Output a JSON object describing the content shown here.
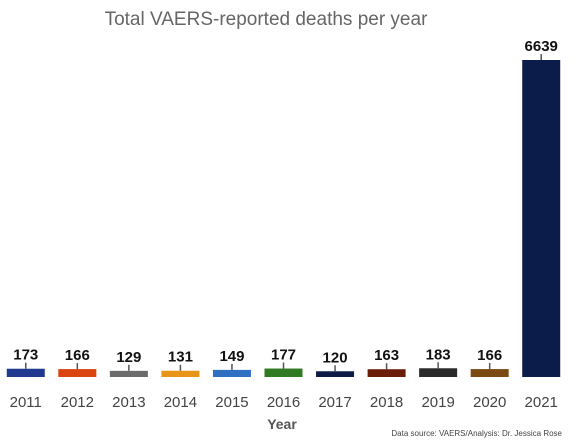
{
  "chart_data": {
    "type": "bar",
    "title": "Total VAERS-reported deaths per year",
    "xlabel": "Year",
    "ylabel": "",
    "source_note": "Data source: VAERS/Analysis: Dr. Jessica Rose",
    "categories": [
      "2011",
      "2012",
      "2013",
      "2014",
      "2015",
      "2016",
      "2017",
      "2018",
      "2019",
      "2020",
      "2021"
    ],
    "values": [
      173,
      166,
      129,
      131,
      149,
      177,
      120,
      163,
      183,
      166,
      6639
    ],
    "value_labels": [
      "173",
      "166",
      "129",
      "131",
      "149",
      "177",
      "120",
      "163",
      "183",
      "166",
      "6639"
    ],
    "colors": [
      "#1f3a8f",
      "#d9440f",
      "#6b6b6b",
      "#e89418",
      "#2f6fc2",
      "#2f7a23",
      "#0e1b45",
      "#6a1d07",
      "#2a2a2a",
      "#7a4a12",
      "#0c1c4a"
    ],
    "ylim": [
      0,
      6639
    ],
    "grid": false,
    "legend": "none",
    "error_bars": true
  }
}
